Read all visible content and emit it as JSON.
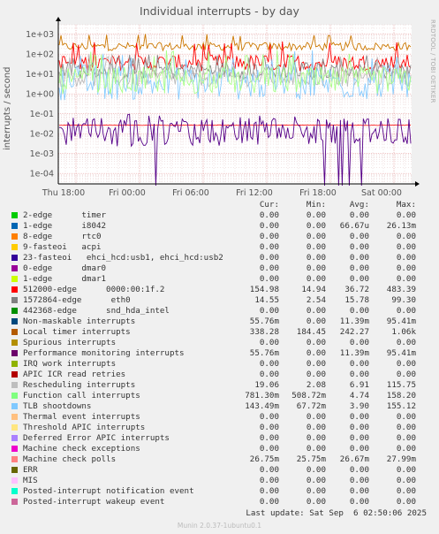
{
  "title": "Individual interrupts - by day",
  "side_label": "RRDTOOL / TOBI OETIKER",
  "chart_data": {
    "type": "line",
    "ylabel": "interrupts / second",
    "yscale": "log",
    "ylim": [
      3e-05,
      3000
    ],
    "y_ticks": [
      {
        "v": 1000,
        "label": "1e+03"
      },
      {
        "v": 100,
        "label": "1e+02"
      },
      {
        "v": 10,
        "label": "1e+01"
      },
      {
        "v": 1,
        "label": "1e+00"
      },
      {
        "v": 0.1,
        "label": "1e-01"
      },
      {
        "v": 0.01,
        "label": "1e-02"
      },
      {
        "v": 0.001,
        "label": "1e-03"
      },
      {
        "v": 0.0001,
        "label": "1e-04"
      }
    ],
    "x_ticks": [
      "Thu 18:00",
      "Fri 00:00",
      "Fri 06:00",
      "Fri 12:00",
      "Fri 18:00",
      "Sat 00:00"
    ],
    "series": [
      {
        "name": "Local timer interrupts",
        "color": "#cc7700",
        "avg": 242.27,
        "min": 184.45,
        "max": 1060
      },
      {
        "name": "512000-edge 0000:00:1f.2",
        "color": "#ff0000",
        "avg": 36.72,
        "min": 14.94,
        "max": 483.39
      },
      {
        "name": "1572864-edge eth0",
        "color": "#888888",
        "avg": 15.78,
        "min": 2.54,
        "max": 99.3
      },
      {
        "name": "Rescheduling interrupts",
        "color": "#bbbbbb",
        "avg": 6.91,
        "min": 2.08,
        "max": 115.75
      },
      {
        "name": "TLB shootdowns",
        "color": "#88ccff",
        "avg": 3.9,
        "min": 0.0677,
        "max": 155.12
      },
      {
        "name": "Function call interrupts",
        "color": "#aaff88",
        "avg": 4.74,
        "min": 0.5087,
        "max": 158.2
      },
      {
        "name": "Machine check polls",
        "color": "#ff2222",
        "avg": 0.02667,
        "min": 0.02575,
        "max": 0.02799
      },
      {
        "name": "Performance monitoring interrupts",
        "color": "#550088",
        "avg": 0.01139,
        "min": 0,
        "max": 0.09541
      }
    ]
  },
  "legend": {
    "headers": [
      "Cur:",
      "Min:",
      "Avg:",
      "Max:"
    ],
    "rows": [
      {
        "color": "#00cc00",
        "name": "2-edge      timer",
        "cur": "0.00",
        "min": "0.00",
        "avg": "0.00",
        "max": "0.00"
      },
      {
        "color": "#0066b3",
        "name": "1-edge      i8042",
        "cur": "0.00",
        "min": "0.00",
        "avg": "66.67u",
        "max": "26.13m"
      },
      {
        "color": "#ff8000",
        "name": "8-edge      rtc0",
        "cur": "0.00",
        "min": "0.00",
        "avg": "0.00",
        "max": "0.00"
      },
      {
        "color": "#ffcc00",
        "name": "9-fasteoi   acpi",
        "cur": "0.00",
        "min": "0.00",
        "avg": "0.00",
        "max": "0.00"
      },
      {
        "color": "#330099",
        "name": "23-fasteoi   ehci_hcd:usb1, ehci_hcd:usb2",
        "cur": "0.00",
        "min": "0.00",
        "avg": "0.00",
        "max": "0.00"
      },
      {
        "color": "#990099",
        "name": "0-edge      dmar0",
        "cur": "0.00",
        "min": "0.00",
        "avg": "0.00",
        "max": "0.00"
      },
      {
        "color": "#ccff00",
        "name": "1-edge      dmar1",
        "cur": "0.00",
        "min": "0.00",
        "avg": "0.00",
        "max": "0.00"
      },
      {
        "color": "#ff0000",
        "name": "512000-edge      0000:00:1f.2",
        "cur": "154.98",
        "min": "14.94",
        "avg": "36.72",
        "max": "483.39"
      },
      {
        "color": "#808080",
        "name": "1572864-edge      eth0",
        "cur": "14.55",
        "min": "2.54",
        "avg": "15.78",
        "max": "99.30"
      },
      {
        "color": "#008f00",
        "name": "442368-edge      snd_hda_intel",
        "cur": "0.00",
        "min": "0.00",
        "avg": "0.00",
        "max": "0.00"
      },
      {
        "color": "#00487d",
        "name": "Non-maskable interrupts",
        "cur": "55.76m",
        "min": "0.00",
        "avg": "11.39m",
        "max": "95.41m"
      },
      {
        "color": "#b35a00",
        "name": "Local timer interrupts",
        "cur": "338.28",
        "min": "184.45",
        "avg": "242.27",
        "max": "1.06k"
      },
      {
        "color": "#b38f00",
        "name": "Spurious interrupts",
        "cur": "0.00",
        "min": "0.00",
        "avg": "0.00",
        "max": "0.00"
      },
      {
        "color": "#6b006b",
        "name": "Performance monitoring interrupts",
        "cur": "55.76m",
        "min": "0.00",
        "avg": "11.39m",
        "max": "95.41m"
      },
      {
        "color": "#8fb300",
        "name": "IRQ work interrupts",
        "cur": "0.00",
        "min": "0.00",
        "avg": "0.00",
        "max": "0.00"
      },
      {
        "color": "#b30000",
        "name": "APIC ICR read retries",
        "cur": "0.00",
        "min": "0.00",
        "avg": "0.00",
        "max": "0.00"
      },
      {
        "color": "#bebebe",
        "name": "Rescheduling interrupts",
        "cur": "19.06",
        "min": "2.08",
        "avg": "6.91",
        "max": "115.75"
      },
      {
        "color": "#80ff80",
        "name": "Function call interrupts",
        "cur": "781.30m",
        "min": "508.72m",
        "avg": "4.74",
        "max": "158.20"
      },
      {
        "color": "#80c9ff",
        "name": "TLB shootdowns",
        "cur": "143.49m",
        "min": "67.72m",
        "avg": "3.90",
        "max": "155.12"
      },
      {
        "color": "#ffc080",
        "name": "Thermal event interrupts",
        "cur": "0.00",
        "min": "0.00",
        "avg": "0.00",
        "max": "0.00"
      },
      {
        "color": "#ffe680",
        "name": "Threshold APIC interrupts",
        "cur": "0.00",
        "min": "0.00",
        "avg": "0.00",
        "max": "0.00"
      },
      {
        "color": "#aa80ff",
        "name": "Deferred Error APIC interrupts",
        "cur": "0.00",
        "min": "0.00",
        "avg": "0.00",
        "max": "0.00"
      },
      {
        "color": "#ee00cc",
        "name": "Machine check exceptions",
        "cur": "0.00",
        "min": "0.00",
        "avg": "0.00",
        "max": "0.00"
      },
      {
        "color": "#ff8080",
        "name": "Machine check polls",
        "cur": "26.75m",
        "min": "25.75m",
        "avg": "26.67m",
        "max": "27.99m"
      },
      {
        "color": "#666600",
        "name": "ERR",
        "cur": "0.00",
        "min": "0.00",
        "avg": "0.00",
        "max": "0.00"
      },
      {
        "color": "#ffbfff",
        "name": "MIS",
        "cur": "0.00",
        "min": "0.00",
        "avg": "0.00",
        "max": "0.00"
      },
      {
        "color": "#00ffcc",
        "name": "Posted-interrupt notification event",
        "cur": "0.00",
        "min": "0.00",
        "avg": "0.00",
        "max": "0.00"
      },
      {
        "color": "#cc6699",
        "name": "Posted-interrupt wakeup event",
        "cur": "0.00",
        "min": "0.00",
        "avg": "0.00",
        "max": "0.00"
      }
    ]
  },
  "last_update": "Last update: Sat Sep  6 02:50:06 2025",
  "munin_version": "Munin 2.0.37-1ubuntu0.1"
}
